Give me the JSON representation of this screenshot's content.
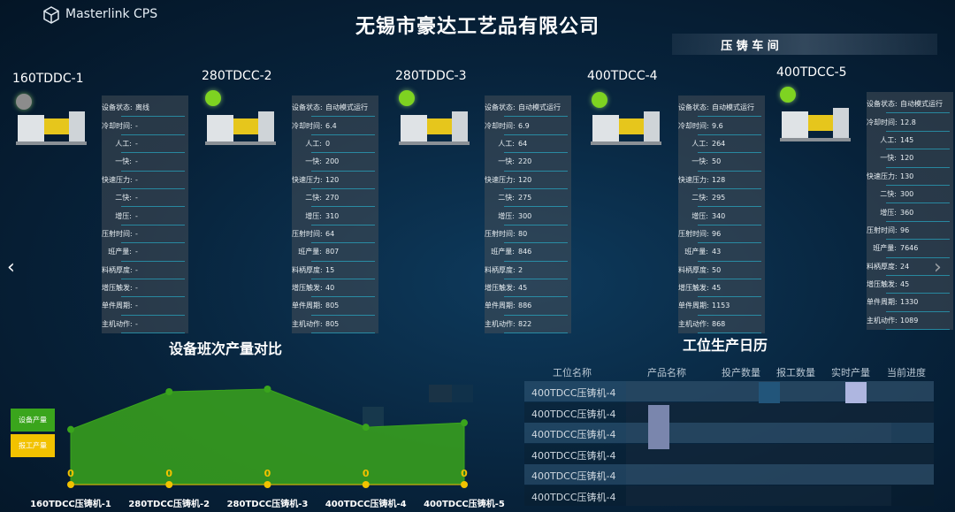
{
  "header": {
    "brand": "Masterlink CPS",
    "title": "无锡市豪达工艺品有限公司",
    "workshop": "压 铸 车 间"
  },
  "machine_field_labels": [
    "设备状态:",
    "冷却时间:",
    "人工:",
    "一快:",
    "快速压力:",
    "二快:",
    "增压:",
    "压射时间:",
    "班产量:",
    "料柄厚度:",
    "增压触发:",
    "单件周期:",
    "主机动作:"
  ],
  "machines": [
    {
      "name": "160TDDC-1",
      "dot_color": "#8c8c8c",
      "values": [
        "离线",
        "-",
        "-",
        "-",
        "-",
        "-",
        "-",
        "-",
        "-",
        "-",
        "-",
        "-",
        "-"
      ]
    },
    {
      "name": "280TDCC-2",
      "dot_color": "#7ed321",
      "values": [
        "自动模式运行",
        6.4,
        0,
        200,
        120,
        270,
        310,
        64,
        807,
        15,
        40,
        805,
        805
      ]
    },
    {
      "name": "280TDDC-3",
      "dot_color": "#7ed321",
      "values": [
        "自动模式运行",
        6.9,
        64,
        220,
        120,
        275,
        300,
        80,
        846,
        2,
        45,
        886,
        822
      ]
    },
    {
      "name": "400TDCC-4",
      "dot_color": "#7ed321",
      "values": [
        "自动模式运行",
        9.6,
        264,
        50,
        128,
        295,
        340,
        96,
        43,
        50,
        45,
        1153,
        868
      ]
    },
    {
      "name": "400TDCC-5",
      "dot_color": "#7ed321",
      "values": [
        "自动模式运行",
        12.8,
        145,
        120,
        130,
        300,
        360,
        96,
        7646,
        24,
        45,
        1330,
        1089
      ]
    }
  ],
  "chart_data": {
    "type": "area",
    "title": "设备班次产量对比",
    "categories": [
      "160TDCC压铸机-1",
      "280TDCC压铸机-2",
      "280TDCC压铸机-3",
      "400TDCC压铸机-4",
      "400TDCC压铸机-5"
    ],
    "series": [
      {
        "name": "设备产量",
        "color": "#3aa51c",
        "values": [
          500,
          842,
          866,
          520,
          560
        ]
      },
      {
        "name": "报工产量",
        "color": "#f2c200",
        "values": [
          0,
          0,
          0,
          0,
          0
        ]
      }
    ]
  },
  "table": {
    "title": "工位生产日历",
    "columns": [
      "工位名称",
      "产品名称",
      "投产数量",
      "报工数量",
      "实时产量",
      "当前进度"
    ],
    "rows": [
      [
        "400TDCC压铸机-4"
      ],
      [
        "400TDCC压铸机-4"
      ],
      [
        "400TDCC压铸机-4"
      ],
      [
        "400TDCC压铸机-4"
      ],
      [
        "400TDCC压铸机-4"
      ],
      [
        "400TDCC压铸机-4"
      ]
    ]
  }
}
